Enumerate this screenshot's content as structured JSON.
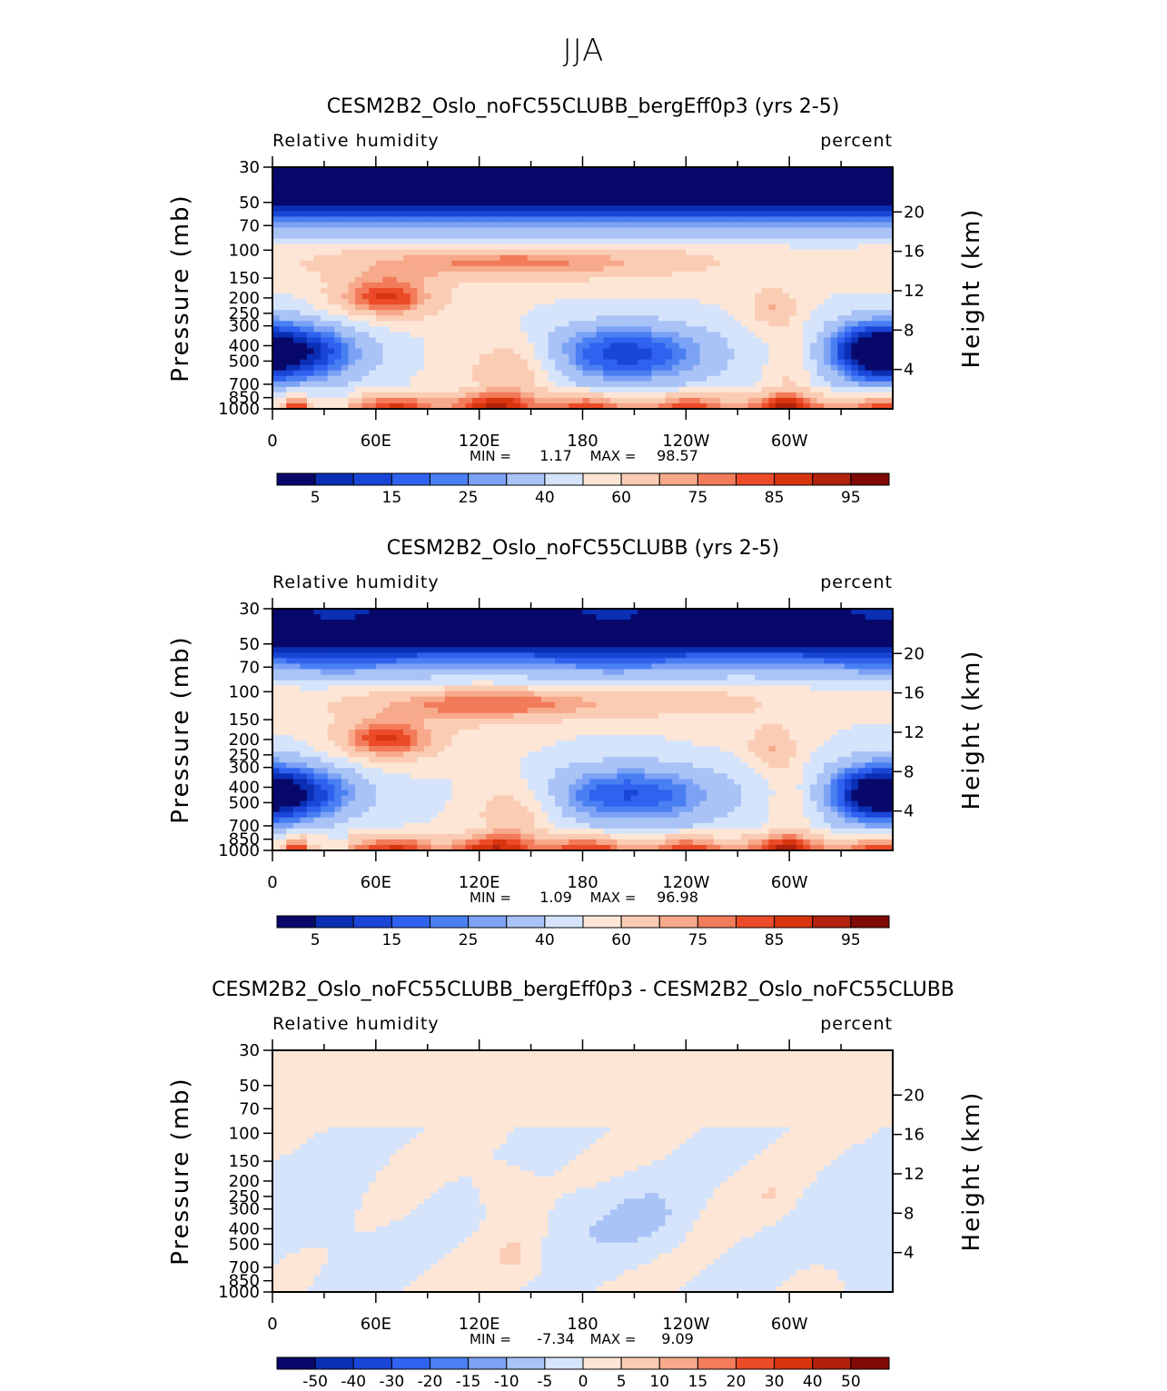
{
  "figure": {
    "title": "JJA",
    "colors": {
      "rh_levels": [
        "#08086b",
        "#0a2fb4",
        "#1a46d8",
        "#2f62ee",
        "#4a7ff3",
        "#7ca2f5",
        "#a9c3f7",
        "#d5e4fb",
        "#fde6d6",
        "#fbccb4",
        "#f7a98b",
        "#f27b5a",
        "#eb4b28",
        "#d8350f",
        "#b1210d",
        "#7f0a06"
      ],
      "diff_levels": [
        "#08086b",
        "#0a2fb4",
        "#1a46d8",
        "#2f62ee",
        "#4a7ff3",
        "#7ca2f5",
        "#a9c3f7",
        "#d5e4fb",
        "#fde6d6",
        "#fbccb4",
        "#f7a98b",
        "#f27b5a",
        "#eb4b28",
        "#d8350f",
        "#b1210d",
        "#7f0a06"
      ]
    }
  },
  "chart_data": [
    {
      "type": "contour",
      "title": "CESM2B2_Oslo_noFC55CLUBB_bergEff0p3 (yrs 2-5)",
      "variable_label": "Relative humidity",
      "units_label": "percent",
      "ylabel": "Pressure (mb)",
      "y2label": "Height (km)",
      "pressure_ticks": [
        "30",
        "50",
        "70",
        "100",
        "150",
        "200",
        "250",
        "300",
        "400",
        "500",
        "700",
        "850",
        "1000"
      ],
      "height_ticks": [
        "20",
        "16",
        "12",
        "8",
        "4"
      ],
      "lon_ticks": [
        "0",
        "60E",
        "120E",
        "180",
        "120W",
        "60W"
      ],
      "min_label": "MIN =",
      "min_value": "1.17",
      "max_label": "MAX =",
      "max_value": "98.57",
      "colorbar_labels": [
        "5",
        "15",
        "25",
        "40",
        "60",
        "75",
        "85",
        "95"
      ],
      "field": "rh1"
    },
    {
      "type": "contour",
      "title": "CESM2B2_Oslo_noFC55CLUBB (yrs 2-5)",
      "variable_label": "Relative humidity",
      "units_label": "percent",
      "ylabel": "Pressure (mb)",
      "y2label": "Height (km)",
      "pressure_ticks": [
        "30",
        "50",
        "70",
        "100",
        "150",
        "200",
        "250",
        "300",
        "400",
        "500",
        "700",
        "850",
        "1000"
      ],
      "height_ticks": [
        "20",
        "16",
        "12",
        "8",
        "4"
      ],
      "lon_ticks": [
        "0",
        "60E",
        "120E",
        "180",
        "120W",
        "60W"
      ],
      "min_label": "MIN =",
      "min_value": "1.09",
      "max_label": "MAX =",
      "max_value": "96.98",
      "colorbar_labels": [
        "5",
        "15",
        "25",
        "40",
        "60",
        "75",
        "85",
        "95"
      ],
      "field": "rh2"
    },
    {
      "type": "contour",
      "title": "CESM2B2_Oslo_noFC55CLUBB_bergEff0p3 - CESM2B2_Oslo_noFC55CLUBB",
      "variable_label": "Relative humidity",
      "units_label": "percent",
      "ylabel": "Pressure (mb)",
      "y2label": "Height (km)",
      "pressure_ticks": [
        "30",
        "50",
        "70",
        "100",
        "150",
        "200",
        "250",
        "300",
        "400",
        "500",
        "700",
        "850",
        "1000"
      ],
      "height_ticks": [
        "20",
        "16",
        "12",
        "8",
        "4"
      ],
      "lon_ticks": [
        "0",
        "60E",
        "120E",
        "180",
        "120W",
        "60W"
      ],
      "min_label": "MIN =",
      "min_value": "-7.34",
      "max_label": "MAX =",
      "max_value": "9.09",
      "colorbar_labels": [
        "-50",
        "-40",
        "-30",
        "-20",
        "-15",
        "-10",
        "-5",
        "0",
        "5",
        "10",
        "15",
        "20",
        "30",
        "40",
        "50"
      ],
      "field": "diff"
    }
  ]
}
